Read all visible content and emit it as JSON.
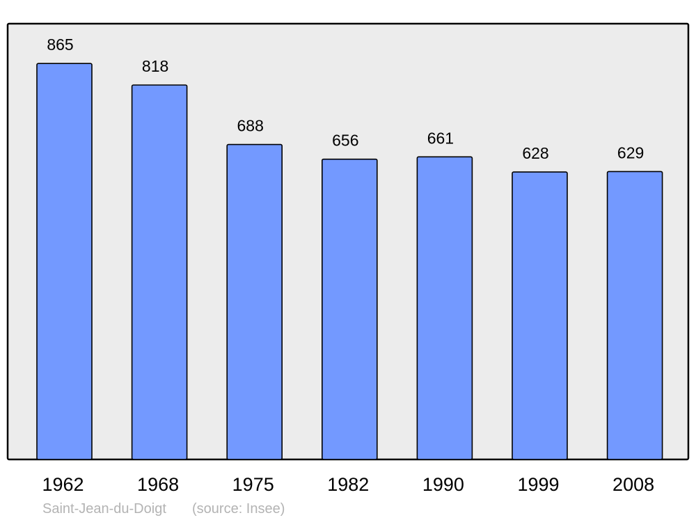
{
  "chart_data": {
    "type": "bar",
    "categories": [
      "1962",
      "1968",
      "1975",
      "1982",
      "1990",
      "1999",
      "2008"
    ],
    "values": [
      865,
      818,
      688,
      656,
      661,
      628,
      629
    ],
    "data_labels": [
      "865",
      "818",
      "688",
      "656",
      "661",
      "628",
      "629"
    ],
    "title": "",
    "xlabel": "",
    "ylabel": "",
    "ylim": [
      0,
      952
    ],
    "grid": false,
    "legend": "none",
    "colors": {
      "bar": "#7399ff",
      "plot_background": "#ececec",
      "bar_stroke": "#000000",
      "footer_text": "#b3b3b3"
    }
  },
  "footer": {
    "place": "Saint-Jean-du-Doigt",
    "source": "(source: Insee)"
  }
}
